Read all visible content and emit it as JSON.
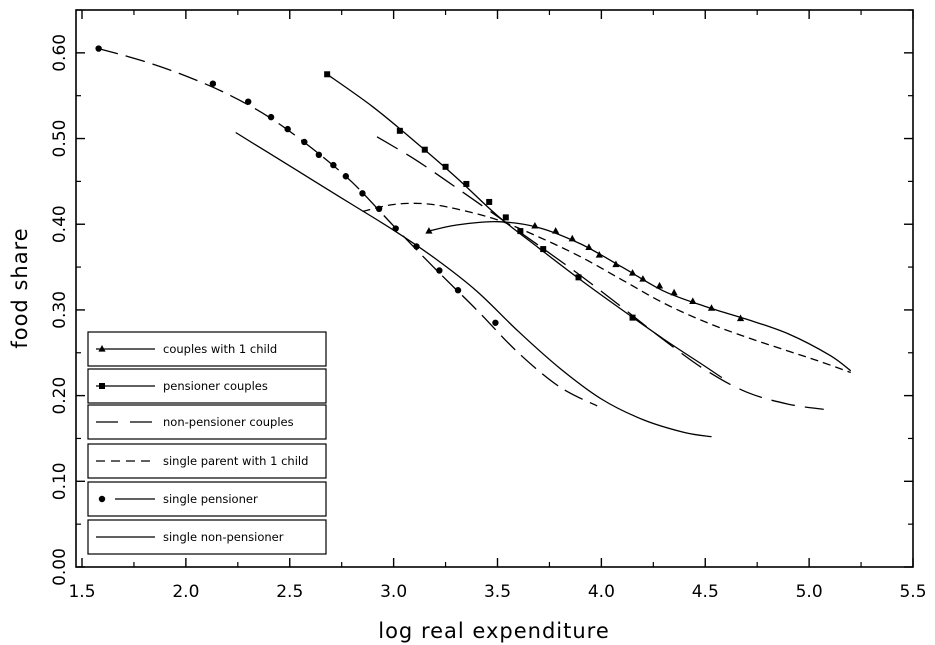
{
  "chart_data": {
    "type": "line",
    "title": "",
    "xlabel": "log real expenditure",
    "ylabel": "food share",
    "xlim": [
      1.5,
      5.5
    ],
    "ylim": [
      0.0,
      0.65
    ],
    "xticks": [
      1.5,
      2.0,
      2.5,
      3.0,
      3.5,
      4.0,
      4.5,
      5.0,
      5.5
    ],
    "xtick_labels": [
      "1.5",
      "2.0",
      "2.5",
      "3.0",
      "3.5",
      "4.0",
      "4.5",
      "5.0",
      "5.5"
    ],
    "yticks": [
      0.0,
      0.1,
      0.2,
      0.3,
      0.4,
      0.5,
      0.6
    ],
    "ytick_labels": [
      "0.00",
      "0.10",
      "0.20",
      "0.30",
      "0.40",
      "0.50",
      "0.60"
    ],
    "grid": false,
    "legend_position": "bottom-left",
    "series": [
      {
        "name": "couples with 1 child",
        "style": "solid",
        "marker": "triangle",
        "line": [
          [
            3.17,
            0.392
          ],
          [
            3.3,
            0.399
          ],
          [
            3.5,
            0.403
          ],
          [
            3.7,
            0.396
          ],
          [
            3.9,
            0.377
          ],
          [
            4.1,
            0.35
          ],
          [
            4.3,
            0.322
          ],
          [
            4.5,
            0.304
          ],
          [
            4.7,
            0.289
          ],
          [
            4.9,
            0.272
          ],
          [
            5.1,
            0.247
          ],
          [
            5.2,
            0.229
          ]
        ],
        "points": [
          [
            3.17,
            0.392
          ],
          [
            3.68,
            0.398
          ],
          [
            3.78,
            0.392
          ],
          [
            3.86,
            0.383
          ],
          [
            3.94,
            0.373
          ],
          [
            3.99,
            0.364
          ],
          [
            4.07,
            0.353
          ],
          [
            4.15,
            0.343
          ],
          [
            4.2,
            0.336
          ],
          [
            4.28,
            0.328
          ],
          [
            4.35,
            0.32
          ],
          [
            4.44,
            0.31
          ],
          [
            4.53,
            0.302
          ],
          [
            4.67,
            0.29
          ]
        ]
      },
      {
        "name": "pensioner couples",
        "style": "solid",
        "marker": "square",
        "line": [
          [
            2.68,
            0.575
          ],
          [
            2.9,
            0.537
          ],
          [
            3.1,
            0.497
          ],
          [
            3.3,
            0.455
          ],
          [
            3.5,
            0.41
          ],
          [
            3.7,
            0.372
          ],
          [
            3.9,
            0.335
          ],
          [
            4.1,
            0.3
          ],
          [
            4.3,
            0.266
          ],
          [
            4.5,
            0.234
          ],
          [
            4.58,
            0.221
          ]
        ],
        "points": [
          [
            2.68,
            0.575
          ],
          [
            3.03,
            0.509
          ],
          [
            3.15,
            0.487
          ],
          [
            3.25,
            0.467
          ],
          [
            3.35,
            0.447
          ],
          [
            3.46,
            0.426
          ],
          [
            3.54,
            0.408
          ],
          [
            3.61,
            0.392
          ],
          [
            3.72,
            0.371
          ],
          [
            3.89,
            0.338
          ],
          [
            4.15,
            0.291
          ]
        ]
      },
      {
        "name": "non-pensioner couples",
        "style": "longdash",
        "marker": "none",
        "line": [
          [
            2.92,
            0.502
          ],
          [
            3.1,
            0.476
          ],
          [
            3.3,
            0.443
          ],
          [
            3.5,
            0.409
          ],
          [
            3.7,
            0.375
          ],
          [
            3.9,
            0.34
          ],
          [
            4.1,
            0.303
          ],
          [
            4.3,
            0.265
          ],
          [
            4.5,
            0.23
          ],
          [
            4.7,
            0.204
          ],
          [
            4.9,
            0.19
          ],
          [
            5.07,
            0.184
          ]
        ],
        "points": []
      },
      {
        "name": "single parent with 1 child",
        "style": "dash",
        "marker": "none",
        "line": [
          [
            2.85,
            0.415
          ],
          [
            3.0,
            0.423
          ],
          [
            3.15,
            0.424
          ],
          [
            3.3,
            0.418
          ],
          [
            3.5,
            0.405
          ],
          [
            3.7,
            0.385
          ],
          [
            3.9,
            0.362
          ],
          [
            4.1,
            0.335
          ],
          [
            4.3,
            0.308
          ],
          [
            4.5,
            0.286
          ],
          [
            4.7,
            0.268
          ],
          [
            4.9,
            0.252
          ],
          [
            5.05,
            0.24
          ],
          [
            5.2,
            0.227
          ]
        ],
        "points": []
      },
      {
        "name": "single pensioner",
        "style": "dash-dot-marker",
        "marker": "circle",
        "line": [
          [
            1.58,
            0.605
          ],
          [
            1.8,
            0.59
          ],
          [
            2.0,
            0.573
          ],
          [
            2.2,
            0.552
          ],
          [
            2.4,
            0.525
          ],
          [
            2.6,
            0.49
          ],
          [
            2.8,
            0.449
          ],
          [
            3.0,
            0.398
          ],
          [
            3.2,
            0.348
          ],
          [
            3.4,
            0.3
          ],
          [
            3.6,
            0.25
          ],
          [
            3.8,
            0.21
          ],
          [
            3.98,
            0.188
          ]
        ],
        "points": [
          [
            1.58,
            0.605
          ],
          [
            2.13,
            0.564
          ],
          [
            2.3,
            0.543
          ],
          [
            2.41,
            0.525
          ],
          [
            2.49,
            0.511
          ],
          [
            2.57,
            0.496
          ],
          [
            2.64,
            0.481
          ],
          [
            2.71,
            0.469
          ],
          [
            2.77,
            0.456
          ],
          [
            2.85,
            0.436
          ],
          [
            2.93,
            0.418
          ],
          [
            3.01,
            0.395
          ],
          [
            3.11,
            0.374
          ],
          [
            3.22,
            0.346
          ],
          [
            3.31,
            0.323
          ],
          [
            3.49,
            0.285
          ]
        ]
      },
      {
        "name": "single non-pensioner",
        "style": "solid",
        "marker": "none",
        "line": [
          [
            2.24,
            0.507
          ],
          [
            2.4,
            0.483
          ],
          [
            2.6,
            0.453
          ],
          [
            2.8,
            0.423
          ],
          [
            3.0,
            0.393
          ],
          [
            3.2,
            0.36
          ],
          [
            3.4,
            0.322
          ],
          [
            3.6,
            0.275
          ],
          [
            3.8,
            0.232
          ],
          [
            4.0,
            0.196
          ],
          [
            4.2,
            0.172
          ],
          [
            4.4,
            0.157
          ],
          [
            4.53,
            0.152
          ]
        ],
        "points": []
      }
    ]
  }
}
